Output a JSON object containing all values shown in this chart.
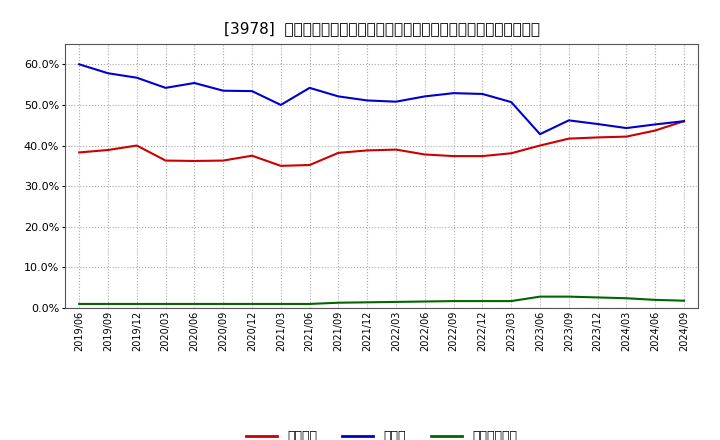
{
  "title": "[3978]  自己資本、のれん、繰延税金資産の総資産に対する比率の推移",
  "x_labels": [
    "2019/06",
    "2019/09",
    "2019/12",
    "2020/03",
    "2020/06",
    "2020/09",
    "2020/12",
    "2021/03",
    "2021/06",
    "2021/09",
    "2021/12",
    "2022/03",
    "2022/06",
    "2022/09",
    "2022/12",
    "2023/03",
    "2023/06",
    "2023/09",
    "2023/12",
    "2024/03",
    "2024/06",
    "2024/09"
  ],
  "equity": [
    0.383,
    0.389,
    0.4,
    0.363,
    0.362,
    0.363,
    0.375,
    0.35,
    0.352,
    0.382,
    0.388,
    0.39,
    0.378,
    0.374,
    0.374,
    0.381,
    0.4,
    0.417,
    0.42,
    0.422,
    0.437,
    0.46
  ],
  "goodwill": [
    0.6,
    0.578,
    0.567,
    0.542,
    0.554,
    0.535,
    0.534,
    0.5,
    0.542,
    0.521,
    0.511,
    0.508,
    0.521,
    0.529,
    0.527,
    0.507,
    0.428,
    0.462,
    0.453,
    0.443,
    0.452,
    0.46
  ],
  "deferred_tax": [
    0.01,
    0.01,
    0.01,
    0.01,
    0.01,
    0.01,
    0.01,
    0.01,
    0.01,
    0.013,
    0.014,
    0.015,
    0.016,
    0.017,
    0.017,
    0.017,
    0.028,
    0.028,
    0.026,
    0.024,
    0.02,
    0.018
  ],
  "equity_color": "#cc0000",
  "goodwill_color": "#0000cc",
  "deferred_tax_color": "#006600",
  "equity_label": "自己資本",
  "goodwill_label": "のれん",
  "deferred_tax_label": "繰延税金資産",
  "ylim": [
    0.0,
    0.65
  ],
  "yticks": [
    0.0,
    0.1,
    0.2,
    0.3,
    0.4,
    0.5,
    0.6
  ],
  "bg_color": "#ffffff",
  "plot_bg_color": "#ffffff",
  "grid_color": "#aaaaaa",
  "title_fontsize": 11
}
